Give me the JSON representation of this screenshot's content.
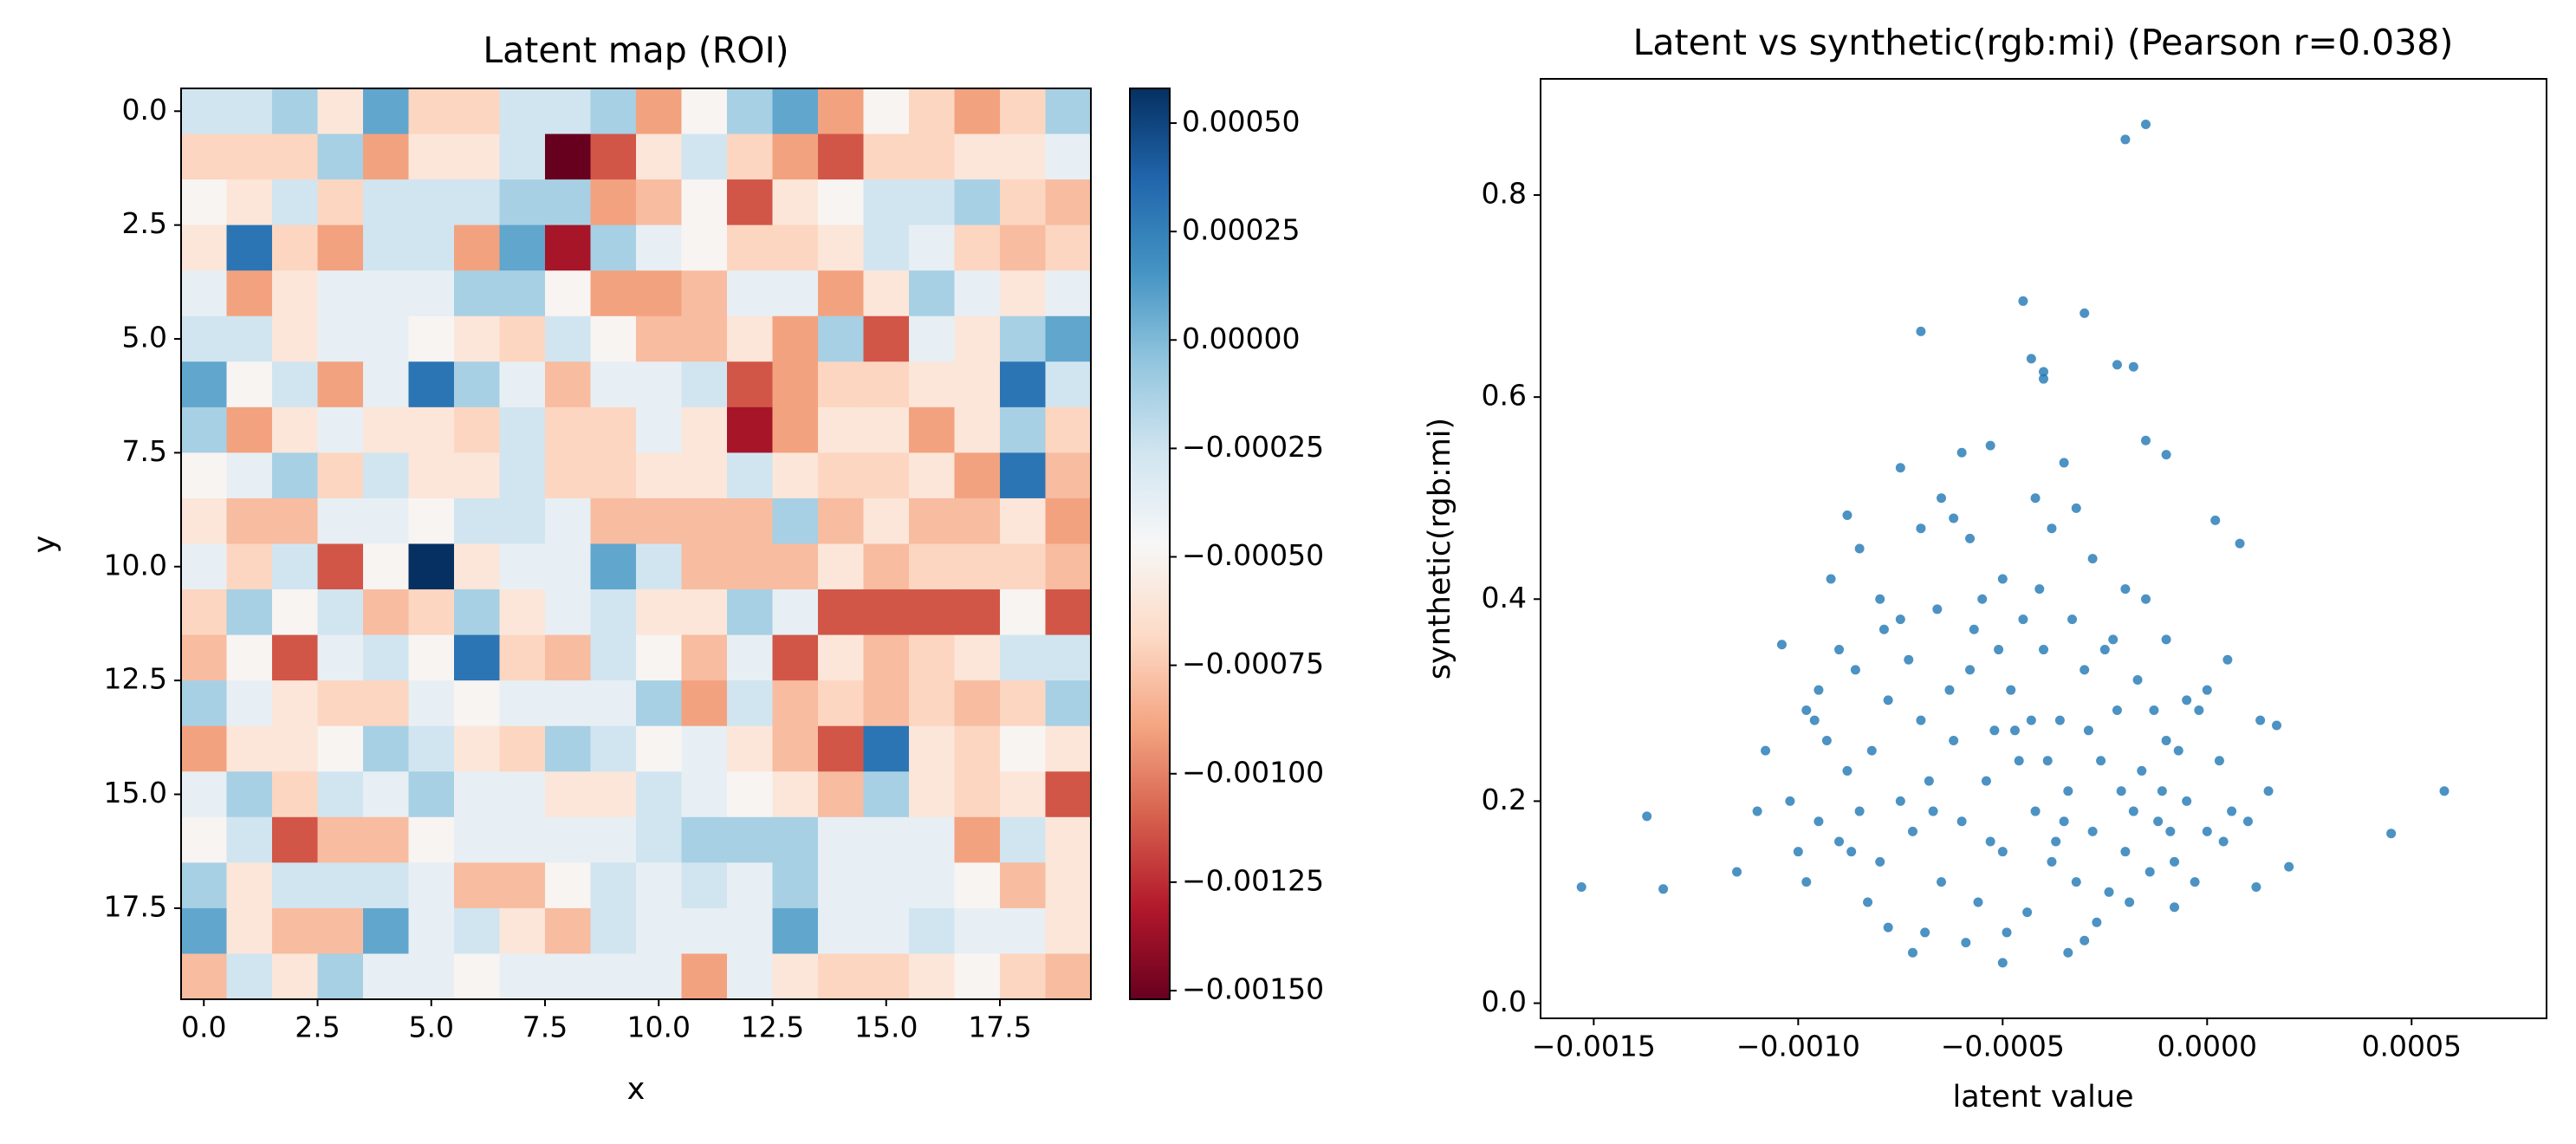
{
  "chart_data": [
    {
      "type": "heatmap",
      "title": "Latent map (ROI)",
      "x_label": "x",
      "y_label": "y",
      "colormap": "RdBu",
      "clim": [
        -0.00152,
        0.00058
      ],
      "xlim": [
        -0.5,
        19.5
      ],
      "ylim": [
        19.5,
        -0.5
      ],
      "xticks": [
        {
          "value": 0,
          "label": "0.0"
        },
        {
          "value": 2.5,
          "label": "2.5"
        },
        {
          "value": 5,
          "label": "5.0"
        },
        {
          "value": 7.5,
          "label": "7.5"
        },
        {
          "value": 10,
          "label": "10.0"
        },
        {
          "value": 12.5,
          "label": "12.5"
        },
        {
          "value": 15,
          "label": "15.0"
        },
        {
          "value": 17.5,
          "label": "17.5"
        }
      ],
      "yticks": [
        {
          "value": 0,
          "label": "0.0"
        },
        {
          "value": 2.5,
          "label": "2.5"
        },
        {
          "value": 5,
          "label": "5.0"
        },
        {
          "value": 7.5,
          "label": "7.5"
        },
        {
          "value": 10,
          "label": "10.0"
        },
        {
          "value": 12.5,
          "label": "12.5"
        },
        {
          "value": 15,
          "label": "15.0"
        },
        {
          "value": 17.5,
          "label": "17.5"
        }
      ],
      "colorbar_ticks": [
        {
          "value": 0.0005,
          "label": "0.00050"
        },
        {
          "value": 0.00025,
          "label": "0.00025"
        },
        {
          "value": 0,
          "label": "0.00000"
        },
        {
          "value": -0.00025,
          "label": "−0.00025"
        },
        {
          "value": -0.0005,
          "label": "−0.00050"
        },
        {
          "value": -0.00075,
          "label": "−0.00075"
        },
        {
          "value": -0.001,
          "label": "−0.00100"
        },
        {
          "value": -0.00125,
          "label": "−0.00125"
        },
        {
          "value": -0.0015,
          "label": "−0.00150"
        }
      ],
      "values": [
        [
          -0.00026,
          -0.00026,
          -0.00012,
          -0.0006,
          8e-05,
          -0.0007,
          -0.0007,
          -0.00026,
          -0.00026,
          -0.00012,
          -0.0009,
          -0.00049,
          -0.00012,
          8e-05,
          -0.0009,
          -0.00049,
          -0.0007,
          -0.0009,
          -0.0007,
          -0.00012
        ],
        [
          -0.0007,
          -0.0007,
          -0.0007,
          -0.00012,
          -0.0009,
          -0.0006,
          -0.0006,
          -0.00026,
          -0.00152,
          -0.00113,
          -0.0006,
          -0.00026,
          -0.0007,
          -0.0009,
          -0.00113,
          -0.0007,
          -0.0007,
          -0.0006,
          -0.0006,
          -0.00038
        ],
        [
          -0.00049,
          -0.0006,
          -0.00026,
          -0.0007,
          -0.00026,
          -0.00026,
          -0.00026,
          -0.00012,
          -0.00012,
          -0.0009,
          -0.0008,
          -0.00049,
          -0.00113,
          -0.0006,
          -0.00049,
          -0.00026,
          -0.00026,
          -0.00012,
          -0.0007,
          -0.0008
        ],
        [
          -0.0006,
          0.0003,
          -0.0007,
          -0.0009,
          -0.00026,
          -0.00026,
          -0.0009,
          8e-05,
          -0.00134,
          -0.00012,
          -0.00038,
          -0.00049,
          -0.0007,
          -0.0007,
          -0.0006,
          -0.00026,
          -0.00038,
          -0.0007,
          -0.0008,
          -0.0007
        ],
        [
          -0.00038,
          -0.0009,
          -0.0006,
          -0.00038,
          -0.00038,
          -0.00038,
          -0.00012,
          -0.00012,
          -0.00049,
          -0.0009,
          -0.0009,
          -0.0008,
          -0.00038,
          -0.00038,
          -0.0009,
          -0.0006,
          -0.00012,
          -0.00038,
          -0.0006,
          -0.00038
        ],
        [
          -0.00026,
          -0.00026,
          -0.0006,
          -0.00038,
          -0.00038,
          -0.00049,
          -0.0006,
          -0.0007,
          -0.00026,
          -0.00049,
          -0.0008,
          -0.0008,
          -0.0006,
          -0.0009,
          -0.00012,
          -0.00113,
          -0.00038,
          -0.0006,
          -0.00012,
          8e-05
        ],
        [
          8e-05,
          -0.00049,
          -0.00026,
          -0.0009,
          -0.00038,
          0.0003,
          -0.00012,
          -0.00038,
          -0.0008,
          -0.00038,
          -0.00038,
          -0.00026,
          -0.00113,
          -0.0009,
          -0.0007,
          -0.0007,
          -0.0006,
          -0.0006,
          0.0003,
          -0.00026
        ],
        [
          -0.00012,
          -0.0009,
          -0.0006,
          -0.00038,
          -0.0006,
          -0.0006,
          -0.0007,
          -0.00026,
          -0.0007,
          -0.0007,
          -0.00038,
          -0.0006,
          -0.00134,
          -0.0009,
          -0.0006,
          -0.0006,
          -0.0009,
          -0.0006,
          -0.00012,
          -0.0007
        ],
        [
          -0.00049,
          -0.00038,
          -0.00012,
          -0.0007,
          -0.00026,
          -0.0006,
          -0.0006,
          -0.00026,
          -0.0007,
          -0.0007,
          -0.0006,
          -0.0006,
          -0.00026,
          -0.0006,
          -0.0007,
          -0.0007,
          -0.0006,
          -0.0009,
          0.0003,
          -0.0008
        ],
        [
          -0.0006,
          -0.0008,
          -0.0008,
          -0.00038,
          -0.00038,
          -0.00049,
          -0.00026,
          -0.00026,
          -0.00038,
          -0.0008,
          -0.0008,
          -0.0008,
          -0.0008,
          -0.00012,
          -0.0008,
          -0.0006,
          -0.0008,
          -0.0008,
          -0.0006,
          -0.0009
        ],
        [
          -0.00038,
          -0.0007,
          -0.00026,
          -0.00113,
          -0.00049,
          0.00058,
          -0.0006,
          -0.00038,
          -0.00038,
          8e-05,
          -0.00026,
          -0.0008,
          -0.0008,
          -0.0008,
          -0.0006,
          -0.0008,
          -0.0007,
          -0.0007,
          -0.0007,
          -0.0008
        ],
        [
          -0.0007,
          -0.00012,
          -0.00049,
          -0.00026,
          -0.0008,
          -0.0007,
          -0.00012,
          -0.0006,
          -0.00038,
          -0.00026,
          -0.0006,
          -0.0006,
          -0.00012,
          -0.00038,
          -0.00113,
          -0.00113,
          -0.00113,
          -0.00113,
          -0.00049,
          -0.00113
        ],
        [
          -0.0008,
          -0.00049,
          -0.00113,
          -0.00038,
          -0.00026,
          -0.00049,
          0.0003,
          -0.0007,
          -0.0008,
          -0.00026,
          -0.00049,
          -0.0008,
          -0.00038,
          -0.00113,
          -0.0006,
          -0.0008,
          -0.0007,
          -0.0006,
          -0.00026,
          -0.00026
        ],
        [
          -0.00012,
          -0.00038,
          -0.0006,
          -0.0007,
          -0.0007,
          -0.00038,
          -0.00049,
          -0.00038,
          -0.00038,
          -0.00038,
          -0.00012,
          -0.0009,
          -0.00026,
          -0.0008,
          -0.0007,
          -0.0008,
          -0.0007,
          -0.0008,
          -0.0007,
          -0.00012
        ],
        [
          -0.0009,
          -0.0006,
          -0.0006,
          -0.00049,
          -0.00012,
          -0.00026,
          -0.0006,
          -0.0007,
          -0.00012,
          -0.00026,
          -0.00049,
          -0.00038,
          -0.0006,
          -0.0008,
          -0.00113,
          0.0003,
          -0.0006,
          -0.0007,
          -0.00049,
          -0.0006
        ],
        [
          -0.00038,
          -0.00012,
          -0.0007,
          -0.00026,
          -0.00038,
          -0.00012,
          -0.00038,
          -0.00038,
          -0.0006,
          -0.0006,
          -0.00026,
          -0.00038,
          -0.00049,
          -0.0006,
          -0.0008,
          -0.00012,
          -0.0006,
          -0.0007,
          -0.0006,
          -0.00113
        ],
        [
          -0.00049,
          -0.00026,
          -0.00113,
          -0.0008,
          -0.0008,
          -0.00049,
          -0.00038,
          -0.00038,
          -0.00038,
          -0.00038,
          -0.00026,
          -0.00012,
          -0.00012,
          -0.00012,
          -0.00038,
          -0.00038,
          -0.00038,
          -0.0009,
          -0.00026,
          -0.0006
        ],
        [
          -0.00012,
          -0.0006,
          -0.00026,
          -0.00026,
          -0.00026,
          -0.00038,
          -0.0008,
          -0.0008,
          -0.00049,
          -0.00026,
          -0.00038,
          -0.00026,
          -0.00038,
          -0.00012,
          -0.00038,
          -0.00038,
          -0.00038,
          -0.00049,
          -0.0008,
          -0.0006
        ],
        [
          8e-05,
          -0.0006,
          -0.0008,
          -0.0008,
          8e-05,
          -0.00038,
          -0.00026,
          -0.0006,
          -0.0008,
          -0.00026,
          -0.00038,
          -0.00038,
          -0.00038,
          8e-05,
          -0.00038,
          -0.00038,
          -0.00026,
          -0.00038,
          -0.00038,
          -0.0006
        ],
        [
          -0.0008,
          -0.00026,
          -0.0006,
          -0.00012,
          -0.00038,
          -0.00038,
          -0.00049,
          -0.00038,
          -0.00038,
          -0.00038,
          -0.00038,
          -0.0009,
          -0.00038,
          -0.0006,
          -0.0007,
          -0.0007,
          -0.0006,
          -0.00049,
          -0.0007,
          -0.0008
        ]
      ]
    },
    {
      "type": "scatter",
      "title": "Latent vs synthetic(rgb:mi) (Pearson r=0.038)",
      "x_label": "latent value",
      "y_label": "synthetic(rgb:mi)",
      "color": "#1f77b4",
      "xlim": [
        -0.00163,
        0.00083
      ],
      "ylim": [
        -0.015,
        0.915
      ],
      "xticks": [
        {
          "value": -0.0015,
          "label": "−0.0015"
        },
        {
          "value": -0.001,
          "label": "−0.0010"
        },
        {
          "value": -0.0005,
          "label": "−0.0005"
        },
        {
          "value": 0,
          "label": "0.0000"
        },
        {
          "value": 0.0005,
          "label": "0.0005"
        }
      ],
      "yticks": [
        {
          "value": 0,
          "label": "0.0"
        },
        0.2,
        0.4,
        0.6,
        0.8
      ],
      "x": [
        -0.00153,
        -0.00137,
        -0.00133,
        -0.00115,
        -0.00104,
        0.00045,
        0.00058,
        -0.00015,
        -0.0002,
        -0.00045,
        -0.0003,
        -0.0007,
        -0.00043,
        -0.0004,
        -0.0004,
        -0.00022,
        -0.00018,
        -0.00015,
        -0.0001,
        -0.0006,
        -0.00053,
        -0.00075,
        -0.00035,
        2e-05,
        8e-05,
        -0.00088,
        0.00015,
        0.00012,
        0.0002,
        0.00017,
        -8e-05,
        -0.0003,
        -0.0005,
        -0.00078,
        -0.00072,
        -0.00034,
        -0.00095,
        -0.00098,
        -0.00092,
        -0.00085,
        -0.0008,
        -0.00075,
        -0.0007,
        -0.00065,
        -0.00062,
        -0.00058,
        -0.00055,
        -0.0005,
        -0.00045,
        -0.00042,
        -0.00038,
        -0.00032,
        -0.00028,
        -0.00025,
        -0.0002,
        -0.00015,
        -0.0001,
        -5e-05,
        0,
        5e-05,
        -0.00102,
        -0.00095,
        -0.0009,
        -0.00088,
        -0.00085,
        -0.00082,
        -0.0008,
        -0.00078,
        -0.00075,
        -0.00072,
        -0.0007,
        -0.00068,
        -0.00065,
        -0.00062,
        -0.0006,
        -0.00058,
        -0.00056,
        -0.00054,
        -0.00052,
        -0.0005,
        -0.00048,
        -0.00046,
        -0.00044,
        -0.00042,
        -0.0004,
        -0.00038,
        -0.00036,
        -0.00034,
        -0.00032,
        -0.0003,
        -0.00028,
        -0.00026,
        -0.00024,
        -0.00022,
        -0.0002,
        -0.00018,
        -0.00016,
        -0.00014,
        -0.00012,
        -0.0001,
        -8e-05,
        -5e-05,
        -3e-05,
        0,
        3e-05,
        6e-05,
        -0.0011,
        -0.00108,
        -0.00098,
        -0.00096,
        -0.0009,
        -0.00086,
        -0.00083,
        -0.00079,
        -0.00073,
        -0.00069,
        -0.00066,
        -0.00063,
        -0.00059,
        -0.00057,
        -0.00051,
        -0.00049,
        -0.00047,
        -0.00041,
        -0.00039,
        -0.00037,
        -0.00033,
        -0.00029,
        -0.00027,
        -0.00023,
        -0.00019,
        -0.00017,
        -0.00011,
        -7e-05,
        -2e-05,
        4e-05,
        0.0001,
        0.00013,
        -0.001,
        -0.00093,
        -0.00087,
        -0.00067,
        -0.00053,
        -0.00043,
        -0.00035,
        -0.00021,
        -0.00013,
        -9e-05
      ],
      "values": [
        0.115,
        0.185,
        0.113,
        0.13,
        0.355,
        0.168,
        0.21,
        0.87,
        0.855,
        0.695,
        0.683,
        0.665,
        0.638,
        0.625,
        0.618,
        0.632,
        0.63,
        0.557,
        0.543,
        0.545,
        0.552,
        0.53,
        0.535,
        0.478,
        0.455,
        0.483,
        0.21,
        0.115,
        0.135,
        0.275,
        0.095,
        0.062,
        0.04,
        0.075,
        0.05,
        0.05,
        0.31,
        0.29,
        0.42,
        0.45,
        0.4,
        0.38,
        0.47,
        0.5,
        0.48,
        0.46,
        0.4,
        0.42,
        0.38,
        0.5,
        0.47,
        0.49,
        0.44,
        0.35,
        0.41,
        0.4,
        0.36,
        0.3,
        0.31,
        0.34,
        0.2,
        0.18,
        0.16,
        0.23,
        0.19,
        0.25,
        0.14,
        0.3,
        0.2,
        0.17,
        0.28,
        0.22,
        0.12,
        0.26,
        0.18,
        0.33,
        0.1,
        0.22,
        0.27,
        0.15,
        0.31,
        0.24,
        0.09,
        0.19,
        0.35,
        0.14,
        0.28,
        0.21,
        0.12,
        0.33,
        0.17,
        0.24,
        0.11,
        0.29,
        0.15,
        0.19,
        0.23,
        0.13,
        0.18,
        0.26,
        0.14,
        0.2,
        0.12,
        0.17,
        0.24,
        0.19,
        0.19,
        0.25,
        0.12,
        0.28,
        0.35,
        0.33,
        0.1,
        0.37,
        0.34,
        0.07,
        0.39,
        0.31,
        0.06,
        0.37,
        0.35,
        0.07,
        0.27,
        0.41,
        0.24,
        0.16,
        0.38,
        0.27,
        0.08,
        0.36,
        0.1,
        0.32,
        0.21,
        0.25,
        0.29,
        0.16,
        0.18,
        0.28,
        0.15,
        0.26,
        0.15,
        0.19,
        0.16,
        0.28,
        0.18,
        0.21,
        0.29,
        0.17
      ]
    }
  ]
}
